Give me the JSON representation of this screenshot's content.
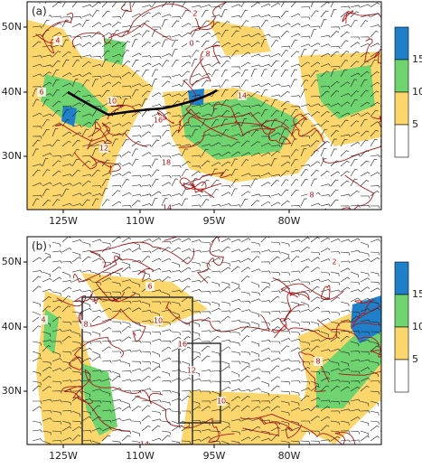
{
  "panels": [
    {
      "label": "(a)",
      "lat_labels": [
        "50N",
        "40N",
        "30N"
      ],
      "lon_labels": [
        "125W",
        "110W",
        "95W",
        "80W"
      ],
      "colorbar_labels": [
        "15",
        "10",
        "5"
      ],
      "contour_labels": [
        "2",
        "0",
        "4",
        "8",
        "6",
        "12",
        "14",
        "16",
        "18",
        "10",
        "14",
        "8"
      ]
    },
    {
      "label": "(b)",
      "lat_labels": [
        "50N",
        "40N",
        "30N"
      ],
      "lon_labels": [
        "125W",
        "110W",
        "95W",
        "80W"
      ],
      "colorbar_labels": [
        "15",
        "10",
        "5"
      ],
      "contour_labels": [
        "4",
        "8",
        "10",
        "6",
        "12",
        "16",
        "10",
        "14",
        "8",
        "2"
      ]
    }
  ]
}
